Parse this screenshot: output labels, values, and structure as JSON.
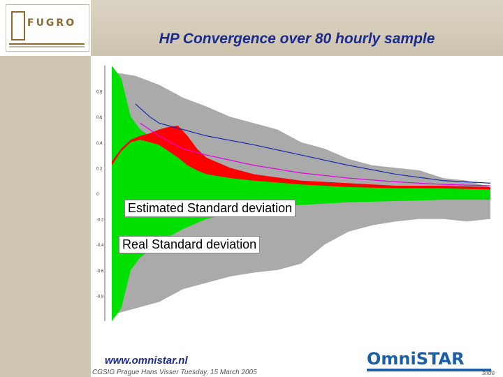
{
  "slide": {
    "title": "HP Convergence over 80 hourly sample",
    "logo_text": "FUGRO",
    "footer_url": "www.omnistar.nl",
    "footer_text": "CGSIG Prague Hans Visser Tuesday, 15 March 2005",
    "brand": "OmniSTAR",
    "slide_label": "slide"
  },
  "labels": {
    "estimated": "Estimated Standard deviation",
    "real": "Real Standard deviation"
  },
  "colors": {
    "title": "#1a2a8f",
    "green_band": "#00e000",
    "grey_band": "#aaaaaa",
    "red_band": "#ff0000",
    "blue_line": "#1a2aa8",
    "magenta_line": "#e000e0",
    "frame": "#cfc6b3"
  },
  "chart_data": {
    "type": "area",
    "title": "",
    "xlabel": "",
    "ylabel": "",
    "ylim": [
      -1.0,
      1.0
    ],
    "ytick_labels": [
      "0.8",
      "0.6",
      "0.4",
      "0.2",
      "0",
      "-0.2",
      "-0.4",
      "-0.6",
      "-0.8"
    ],
    "yticks": [
      0.8,
      0.6,
      0.4,
      0.2,
      0,
      -0.2,
      -0.4,
      -0.6,
      -0.8
    ],
    "xlim": [
      0,
      80
    ],
    "grid": false,
    "series": [
      {
        "name": "Real Standard deviation",
        "kind": "grey-band",
        "x": [
          0,
          5,
          10,
          15,
          20,
          25,
          30,
          35,
          40,
          45,
          50,
          55,
          60,
          65,
          70,
          75,
          80
        ],
        "upper": [
          0.95,
          0.92,
          0.85,
          0.75,
          0.68,
          0.6,
          0.55,
          0.5,
          0.4,
          0.35,
          0.27,
          0.22,
          0.2,
          0.18,
          0.12,
          0.1,
          0.05
        ],
        "lower": [
          -0.95,
          -0.9,
          -0.85,
          -0.75,
          -0.7,
          -0.65,
          -0.62,
          -0.6,
          -0.55,
          -0.4,
          -0.3,
          -0.25,
          -0.22,
          -0.2,
          -0.2,
          -0.22,
          -0.2
        ]
      },
      {
        "name": "Estimated Standard deviation",
        "kind": "green-band",
        "x": [
          0,
          2,
          4,
          6,
          8,
          10,
          15,
          20,
          30,
          40,
          50,
          60,
          70,
          80
        ],
        "upper": [
          1.0,
          0.9,
          0.6,
          0.5,
          0.45,
          0.38,
          0.28,
          0.2,
          0.12,
          0.09,
          0.07,
          0.06,
          0.05,
          0.05
        ],
        "lower": [
          -1.0,
          -0.9,
          -0.6,
          -0.5,
          -0.45,
          -0.38,
          -0.28,
          -0.2,
          -0.12,
          -0.09,
          -0.07,
          -0.06,
          -0.05,
          -0.05
        ]
      },
      {
        "name": "red",
        "kind": "red-band",
        "x": [
          0,
          2,
          4,
          6,
          8,
          10,
          12,
          14,
          16,
          18,
          20,
          25,
          30,
          40,
          50,
          60,
          70,
          80
        ],
        "upper": [
          0.25,
          0.35,
          0.42,
          0.45,
          0.47,
          0.5,
          0.52,
          0.53,
          0.45,
          0.35,
          0.28,
          0.2,
          0.15,
          0.1,
          0.08,
          0.06,
          0.06,
          0.05
        ],
        "lower": [
          0.22,
          0.33,
          0.4,
          0.42,
          0.4,
          0.38,
          0.33,
          0.28,
          0.22,
          0.18,
          0.15,
          0.12,
          0.1,
          0.07,
          0.05,
          0.04,
          0.04,
          0.03
        ]
      },
      {
        "name": "blue",
        "kind": "line",
        "x": [
          5,
          8,
          10,
          15,
          20,
          30,
          40,
          50,
          60,
          70,
          80
        ],
        "y": [
          0.7,
          0.6,
          0.55,
          0.5,
          0.45,
          0.38,
          0.3,
          0.22,
          0.15,
          0.1,
          0.08
        ]
      },
      {
        "name": "magenta",
        "kind": "line",
        "x": [
          6,
          10,
          15,
          20,
          30,
          40,
          50,
          60,
          70,
          80
        ],
        "y": [
          0.55,
          0.45,
          0.35,
          0.3,
          0.22,
          0.16,
          0.12,
          0.09,
          0.07,
          0.06
        ]
      }
    ]
  }
}
